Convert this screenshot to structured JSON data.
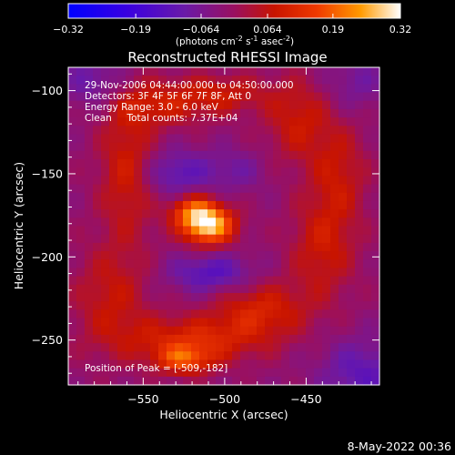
{
  "chart_data": {
    "type": "heatmap",
    "title": "Reconstructed RHESSI Image",
    "xlabel": "Heliocentric X (arcsec)",
    "ylabel": "Heliocentric Y (arcsec)",
    "xlim": [
      -596,
      -405
    ],
    "ylim": [
      -277,
      -86
    ],
    "x_ticks": [
      -550,
      -500,
      -450
    ],
    "y_ticks": [
      -100,
      -150,
      -200,
      -250
    ],
    "colorbar": {
      "range": [
        -0.32,
        0.32
      ],
      "ticks": [
        "-0.32",
        "-0.19",
        "-0.064",
        "0.064",
        "0.19",
        "0.32"
      ],
      "unit_label": "(photons cm-2 s-1 asec-2)"
    },
    "info_lines": [
      "29-Nov-2006 04:44:00.000 to 04:50:00.000",
      "Detectors: 3F 4F 5F 6F 7F 8F, Att 0",
      "Energy Range: 3.0 - 6.0 keV",
      "Clean     Total counts: 7.37E+04"
    ],
    "peak_label": "Position of Peak = [-509,-182]",
    "peak": {
      "x": -509,
      "y": -182,
      "value": 0.32
    },
    "lobes": [
      {
        "x": -510,
        "y": -181,
        "sx": 11,
        "sy": 8,
        "value": 0.31
      },
      {
        "x": -520,
        "y": -172,
        "sx": 10,
        "sy": 7,
        "value": 0.16
      },
      {
        "x": -560,
        "y": -148,
        "sx": 12,
        "sy": 30,
        "value": 0.11
      },
      {
        "x": -540,
        "y": -108,
        "sx": 22,
        "sy": 10,
        "value": 0.1
      },
      {
        "x": -500,
        "y": -102,
        "sx": 20,
        "sy": 8,
        "value": 0.09
      },
      {
        "x": -455,
        "y": -118,
        "sx": 14,
        "sy": 18,
        "value": 0.1
      },
      {
        "x": -430,
        "y": -150,
        "sx": 12,
        "sy": 22,
        "value": 0.09
      },
      {
        "x": -440,
        "y": -195,
        "sx": 14,
        "sy": 22,
        "value": 0.1
      },
      {
        "x": -478,
        "y": -232,
        "sx": 20,
        "sy": 12,
        "value": 0.12
      },
      {
        "x": -520,
        "y": -250,
        "sx": 30,
        "sy": 10,
        "value": 0.13
      },
      {
        "x": -570,
        "y": -225,
        "sx": 16,
        "sy": 22,
        "value": 0.09
      },
      {
        "x": -525,
        "y": -262,
        "sx": 12,
        "sy": 6,
        "value": 0.16
      },
      {
        "x": -530,
        "y": -150,
        "sx": 14,
        "sy": 10,
        "value": -0.1
      },
      {
        "x": -495,
        "y": -148,
        "sx": 14,
        "sy": 9,
        "value": -0.06
      },
      {
        "x": -508,
        "y": -210,
        "sx": 18,
        "sy": 8,
        "value": -0.12
      },
      {
        "x": -580,
        "y": -95,
        "sx": 14,
        "sy": 12,
        "value": -0.08
      },
      {
        "x": -415,
        "y": -270,
        "sx": 18,
        "sy": 14,
        "value": -0.1
      },
      {
        "x": -420,
        "y": -95,
        "sx": 14,
        "sy": 12,
        "value": -0.06
      }
    ]
  },
  "footer_timestamp": "8-May-2022 00:36"
}
